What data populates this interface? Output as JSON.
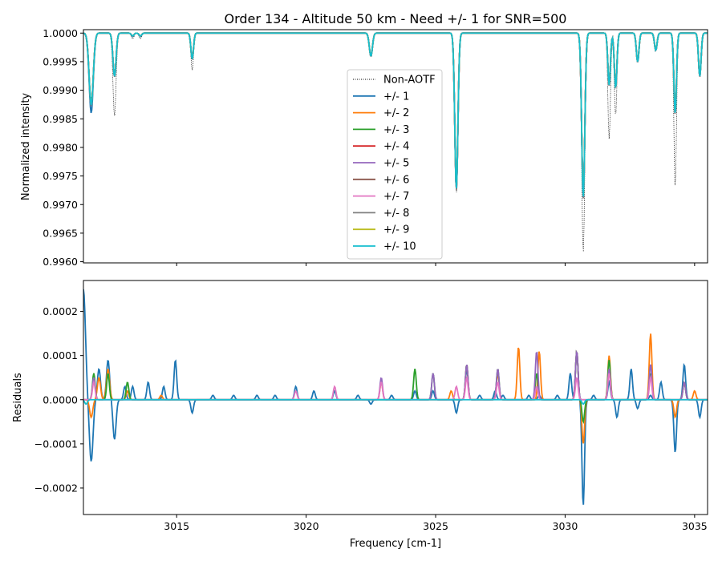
{
  "figure": {
    "title": "Order 134 - Altitude 50 km - Need +/- 1 for SNR=500"
  },
  "chart_data": [
    {
      "type": "line",
      "panel": "top",
      "title": "Order 134 - Altitude 50 km - Need +/- 1 for SNR=500",
      "xlabel": "",
      "ylabel": "Normalized intensity",
      "xlim": [
        3011.4,
        3035.5
      ],
      "ylim": [
        0.99598,
        1.00006
      ],
      "x_ticks": [
        3015,
        3020,
        3025,
        3030,
        3035
      ],
      "x_tick_labels_visible": false,
      "y_ticks": [
        0.996,
        0.9965,
        0.997,
        0.9975,
        0.998,
        0.9985,
        0.999,
        0.9995,
        1.0
      ],
      "y_tick_labels": [
        "0.9960",
        "0.9965",
        "0.9970",
        "0.9975",
        "0.9980",
        "0.9985",
        "0.9990",
        "0.9995",
        "1.0000"
      ],
      "grid": false,
      "legend": {
        "placement": "upper-center",
        "entries": [
          "Non-AOTF",
          "+/- 1",
          "+/- 2",
          "+/- 3",
          "+/- 4",
          "+/- 5",
          "+/- 6",
          "+/- 7",
          "+/- 8",
          "+/- 9",
          "+/- 10"
        ]
      },
      "absorption_lines": [
        {
          "x": 3011.7,
          "depth_non_aotf": 0.00115,
          "depth_pm1": 0.0014,
          "depth_smoothed": 0.00125,
          "width": 0.08
        },
        {
          "x": 3012.6,
          "depth_non_aotf": 0.00145,
          "depth_pm1": 0.00075,
          "depth_smoothed": 0.00075,
          "width": 0.06
        },
        {
          "x": 3013.3,
          "depth_non_aotf": 0.0001,
          "depth_pm1": 6e-05,
          "depth_smoothed": 5e-05,
          "width": 0.05
        },
        {
          "x": 3013.6,
          "depth_non_aotf": 0.0001,
          "depth_pm1": 6e-05,
          "depth_smoothed": 5e-05,
          "width": 0.05
        },
        {
          "x": 3015.6,
          "depth_non_aotf": 0.00065,
          "depth_pm1": 0.00045,
          "depth_smoothed": 0.00045,
          "width": 0.05
        },
        {
          "x": 3022.5,
          "depth_non_aotf": 0.0004,
          "depth_pm1": 0.0004,
          "depth_smoothed": 0.0004,
          "width": 0.06
        },
        {
          "x": 3025.8,
          "depth_non_aotf": 0.0028,
          "depth_pm1": 0.0027,
          "depth_smoothed": 0.0027,
          "width": 0.06
        },
        {
          "x": 3030.7,
          "depth_non_aotf": 0.00385,
          "depth_pm1": 0.00285,
          "depth_smoothed": 0.00285,
          "width": 0.06
        },
        {
          "x": 3031.7,
          "depth_non_aotf": 0.00185,
          "depth_pm1": 0.0009,
          "depth_smoothed": 0.0009,
          "width": 0.05
        },
        {
          "x": 3031.95,
          "depth_non_aotf": 0.00145,
          "depth_pm1": 0.00095,
          "depth_smoothed": 0.00095,
          "width": 0.05
        },
        {
          "x": 3032.8,
          "depth_non_aotf": 0.0005,
          "depth_pm1": 0.0005,
          "depth_smoothed": 0.0005,
          "width": 0.05
        },
        {
          "x": 3033.5,
          "depth_non_aotf": 0.0003,
          "depth_pm1": 0.0003,
          "depth_smoothed": 0.0003,
          "width": 0.05
        },
        {
          "x": 3034.25,
          "depth_non_aotf": 0.0027,
          "depth_pm1": 0.00135,
          "depth_smoothed": 0.0014,
          "width": 0.05
        },
        {
          "x": 3035.2,
          "depth_non_aotf": 0.00075,
          "depth_pm1": 0.00075,
          "depth_smoothed": 0.00075,
          "width": 0.05
        }
      ],
      "series": [
        {
          "name": "Non-AOTF",
          "color": "#000000",
          "style": "dotted"
        },
        {
          "name": "+/- 1",
          "color": "#1f77b4"
        },
        {
          "name": "+/- 2",
          "color": "#ff7f0e"
        },
        {
          "name": "+/- 3",
          "color": "#2ca02c"
        },
        {
          "name": "+/- 4",
          "color": "#d62728"
        },
        {
          "name": "+/- 5",
          "color": "#9467bd"
        },
        {
          "name": "+/- 6",
          "color": "#8c564b"
        },
        {
          "name": "+/- 7",
          "color": "#e377c2"
        },
        {
          "name": "+/- 8",
          "color": "#7f7f7f"
        },
        {
          "name": "+/- 9",
          "color": "#bcbd22"
        },
        {
          "name": "+/- 10",
          "color": "#17becf"
        }
      ]
    },
    {
      "type": "line",
      "panel": "bottom",
      "title": "",
      "xlabel": "Frequency [cm-1]",
      "ylabel": "Residuals",
      "xlim": [
        3011.4,
        3035.5
      ],
      "ylim": [
        -0.00026,
        0.00027
      ],
      "x_ticks": [
        3015,
        3020,
        3025,
        3030,
        3035
      ],
      "x_tick_labels": [
        "3015",
        "3020",
        "3025",
        "3030",
        "3035"
      ],
      "y_ticks": [
        -0.0002,
        -0.0001,
        0.0,
        0.0001,
        0.0002
      ],
      "y_tick_labels": [
        "−0.0002",
        "−0.0001",
        "0.0000",
        "0.0001",
        "0.0002"
      ],
      "grid": false,
      "series": [
        {
          "name": "+/- 1",
          "color": "#1f77b4",
          "peaks": [
            [
              3011.4,
              0.00025,
              0.08
            ],
            [
              3011.7,
              -0.00014,
              0.07
            ],
            [
              3012.0,
              7e-05,
              0.06
            ],
            [
              3012.35,
              9e-05,
              0.06
            ],
            [
              3012.6,
              -9e-05,
              0.06
            ],
            [
              3013.0,
              3e-05,
              0.05
            ],
            [
              3013.3,
              3e-05,
              0.05
            ],
            [
              3013.9,
              4e-05,
              0.05
            ],
            [
              3014.5,
              3e-05,
              0.05
            ],
            [
              3014.95,
              9e-05,
              0.05
            ],
            [
              3015.6,
              -3e-05,
              0.05
            ],
            [
              3016.4,
              1e-05,
              0.05
            ],
            [
              3017.2,
              1e-05,
              0.05
            ],
            [
              3018.1,
              1e-05,
              0.05
            ],
            [
              3018.8,
              1e-05,
              0.05
            ],
            [
              3019.6,
              3e-05,
              0.05
            ],
            [
              3020.3,
              2e-05,
              0.05
            ],
            [
              3021.1,
              2e-05,
              0.05
            ],
            [
              3022.0,
              1e-05,
              0.05
            ],
            [
              3022.5,
              -1e-05,
              0.05
            ],
            [
              3023.3,
              1e-05,
              0.05
            ],
            [
              3024.2,
              2e-05,
              0.05
            ],
            [
              3024.9,
              2e-05,
              0.05
            ],
            [
              3025.8,
              -3e-05,
              0.05
            ],
            [
              3026.2,
              7e-05,
              0.05
            ],
            [
              3026.7,
              1e-05,
              0.05
            ],
            [
              3027.3,
              2e-05,
              0.05
            ],
            [
              3027.6,
              1e-05,
              0.05
            ],
            [
              3028.6,
              1e-05,
              0.05
            ],
            [
              3029.0,
              1e-05,
              0.05
            ],
            [
              3029.7,
              1e-05,
              0.05
            ],
            [
              3030.2,
              6e-05,
              0.05
            ],
            [
              3030.45,
              0.00011,
              0.05
            ],
            [
              3030.7,
              -0.00024,
              0.05
            ],
            [
              3031.1,
              1e-05,
              0.05
            ],
            [
              3031.7,
              4e-05,
              0.05
            ],
            [
              3032.0,
              -4e-05,
              0.05
            ],
            [
              3032.55,
              7e-05,
              0.05
            ],
            [
              3032.8,
              -2e-05,
              0.05
            ],
            [
              3033.3,
              1e-05,
              0.05
            ],
            [
              3033.7,
              4e-05,
              0.05
            ],
            [
              3034.25,
              -0.00012,
              0.05
            ],
            [
              3034.6,
              8e-05,
              0.05
            ],
            [
              3035.2,
              -4e-05,
              0.05
            ]
          ]
        },
        {
          "name": "+/- 2",
          "color": "#ff7f0e",
          "peaks": [
            [
              3011.7,
              -4e-05,
              0.06
            ],
            [
              3012.0,
              5e-05,
              0.06
            ],
            [
              3012.35,
              7e-05,
              0.06
            ],
            [
              3013.1,
              2e-05,
              0.05
            ],
            [
              3014.4,
              1e-05,
              0.05
            ],
            [
              3022.9,
              4e-05,
              0.05
            ],
            [
              3025.6,
              2e-05,
              0.05
            ],
            [
              3026.2,
              8e-05,
              0.05
            ],
            [
              3027.4,
              6e-05,
              0.05
            ],
            [
              3028.2,
              0.00012,
              0.05
            ],
            [
              3029.0,
              0.00011,
              0.05
            ],
            [
              3030.45,
              0.00011,
              0.05
            ],
            [
              3030.7,
              -0.0001,
              0.05
            ],
            [
              3031.7,
              0.0001,
              0.05
            ],
            [
              3033.3,
              0.00015,
              0.05
            ],
            [
              3034.25,
              -4e-05,
              0.05
            ],
            [
              3034.6,
              4e-05,
              0.05
            ],
            [
              3035.0,
              2e-05,
              0.05
            ]
          ]
        },
        {
          "name": "+/- 3",
          "color": "#2ca02c",
          "peaks": [
            [
              3011.8,
              6e-05,
              0.05
            ],
            [
              3012.35,
              6e-05,
              0.05
            ],
            [
              3013.1,
              4e-05,
              0.05
            ],
            [
              3024.2,
              7e-05,
              0.05
            ],
            [
              3024.9,
              6e-05,
              0.05
            ],
            [
              3026.2,
              8e-05,
              0.05
            ],
            [
              3027.4,
              7e-05,
              0.05
            ],
            [
              3028.9,
              6e-05,
              0.05
            ],
            [
              3030.45,
              0.00011,
              0.05
            ],
            [
              3030.7,
              -5e-05,
              0.05
            ],
            [
              3031.7,
              9e-05,
              0.05
            ],
            [
              3033.3,
              6e-05,
              0.05
            ],
            [
              3034.6,
              4e-05,
              0.05
            ]
          ]
        },
        {
          "name": "+/- 5",
          "color": "#9467bd",
          "peaks": [
            [
              3011.8,
              5e-05,
              0.05
            ],
            [
              3022.9,
              5e-05,
              0.05
            ],
            [
              3024.9,
              6e-05,
              0.05
            ],
            [
              3026.2,
              8e-05,
              0.05
            ],
            [
              3027.4,
              7e-05,
              0.05
            ],
            [
              3028.9,
              0.00011,
              0.05
            ],
            [
              3030.45,
              0.00011,
              0.05
            ],
            [
              3031.7,
              7e-05,
              0.05
            ],
            [
              3033.3,
              8e-05,
              0.05
            ],
            [
              3034.6,
              4e-05,
              0.05
            ]
          ]
        },
        {
          "name": "+/- 7",
          "color": "#e377c2",
          "peaks": [
            [
              3011.8,
              4e-05,
              0.05
            ],
            [
              3019.6,
              2e-05,
              0.05
            ],
            [
              3021.1,
              3e-05,
              0.05
            ],
            [
              3022.9,
              4e-05,
              0.05
            ],
            [
              3025.8,
              3e-05,
              0.05
            ],
            [
              3026.2,
              5e-05,
              0.05
            ],
            [
              3027.4,
              4e-05,
              0.05
            ],
            [
              3028.9,
              3e-05,
              0.05
            ],
            [
              3030.45,
              5e-05,
              0.05
            ],
            [
              3031.7,
              6e-05,
              0.05
            ],
            [
              3033.3,
              5e-05,
              0.05
            ]
          ]
        },
        {
          "name": "+/- 10",
          "color": "#17becf",
          "peaks": [
            [
              3011.5,
              -1e-05,
              0.05
            ],
            [
              3030.7,
              -1e-05,
              0.05
            ]
          ]
        }
      ]
    }
  ]
}
